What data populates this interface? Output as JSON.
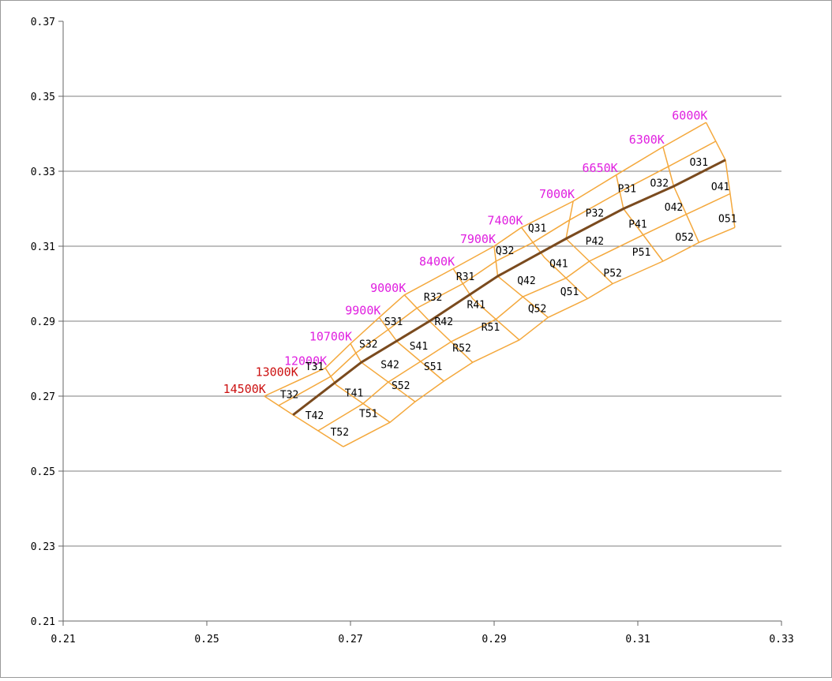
{
  "chart_data": {
    "type": "scatter",
    "title": "",
    "xlabel": "",
    "ylabel": "",
    "xlim": [
      0.21,
      0.33
    ],
    "ylim": [
      0.21,
      0.37
    ],
    "xticks": [
      "0.21",
      "0.25",
      "0.27",
      "0.29",
      "0.31",
      "0.33"
    ],
    "yticks": [
      "0.37",
      "0.35",
      "0.33",
      "0.31",
      "0.29",
      "0.27",
      "0.25",
      "0.23",
      "0.21"
    ],
    "grid": "horizontal",
    "colors": {
      "grid_lines": "#7f7f7f",
      "bin_outline": "#f4a83c",
      "locus": "#7a4a1e",
      "cct_magenta": "#e020e0",
      "cct_red": "#cc1111"
    },
    "planckian_locus": [
      {
        "x": 0.262,
        "y": 0.265
      },
      {
        "x": 0.2715,
        "y": 0.279
      },
      {
        "x": 0.281,
        "y": 0.29
      },
      {
        "x": 0.2905,
        "y": 0.302
      },
      {
        "x": 0.3,
        "y": 0.312
      },
      {
        "x": 0.308,
        "y": 0.32
      },
      {
        "x": 0.315,
        "y": 0.326
      },
      {
        "x": 0.3222,
        "y": 0.333
      }
    ],
    "bin_grid": {
      "upper_edge": [
        {
          "x": 0.258,
          "y": 0.27
        },
        {
          "x": 0.2665,
          "y": 0.2775
        },
        {
          "x": 0.27,
          "y": 0.284
        },
        {
          "x": 0.274,
          "y": 0.291
        },
        {
          "x": 0.2775,
          "y": 0.297
        },
        {
          "x": 0.2843,
          "y": 0.304
        },
        {
          "x": 0.29,
          "y": 0.31
        },
        {
          "x": 0.2938,
          "y": 0.315
        },
        {
          "x": 0.301,
          "y": 0.322
        },
        {
          "x": 0.307,
          "y": 0.329
        },
        {
          "x": 0.3135,
          "y": 0.3365
        },
        {
          "x": 0.3195,
          "y": 0.343
        }
      ],
      "middle_edge": [
        {
          "x": 0.262,
          "y": 0.265
        },
        {
          "x": 0.268,
          "y": 0.273
        },
        {
          "x": 0.2715,
          "y": 0.279
        },
        {
          "x": 0.2765,
          "y": 0.2845
        },
        {
          "x": 0.281,
          "y": 0.29
        },
        {
          "x": 0.287,
          "y": 0.296
        },
        {
          "x": 0.2905,
          "y": 0.302
        },
        {
          "x": 0.297,
          "y": 0.307
        },
        {
          "x": 0.3,
          "y": 0.312
        },
        {
          "x": 0.308,
          "y": 0.32
        },
        {
          "x": 0.315,
          "y": 0.326
        },
        {
          "x": 0.3222,
          "y": 0.333
        }
      ],
      "lower_edge": [
        {
          "x": 0.269,
          "y": 0.2565
        },
        {
          "x": 0.2755,
          "y": 0.263
        },
        {
          "x": 0.279,
          "y": 0.2685
        },
        {
          "x": 0.283,
          "y": 0.274
        },
        {
          "x": 0.287,
          "y": 0.279
        },
        {
          "x": 0.2935,
          "y": 0.285
        },
        {
          "x": 0.2975,
          "y": 0.291
        },
        {
          "x": 0.303,
          "y": 0.296
        },
        {
          "x": 0.3065,
          "y": 0.3
        },
        {
          "x": 0.3135,
          "y": 0.306
        },
        {
          "x": 0.3185,
          "y": 0.311
        },
        {
          "x": 0.3235,
          "y": 0.315
        }
      ]
    },
    "cct_labels": [
      {
        "text": "6000K",
        "x": 0.3195,
        "y": 0.343,
        "color": "magenta"
      },
      {
        "text": "6300K",
        "x": 0.3135,
        "y": 0.3365,
        "color": "magenta"
      },
      {
        "text": "6650K",
        "x": 0.307,
        "y": 0.329,
        "color": "magenta"
      },
      {
        "text": "7000K",
        "x": 0.301,
        "y": 0.322,
        "color": "magenta"
      },
      {
        "text": "7400K",
        "x": 0.2938,
        "y": 0.315,
        "color": "magenta"
      },
      {
        "text": "7900K",
        "x": 0.29,
        "y": 0.31,
        "color": "magenta"
      },
      {
        "text": "8400K",
        "x": 0.2843,
        "y": 0.304,
        "color": "magenta"
      },
      {
        "text": "9000K",
        "x": 0.2775,
        "y": 0.297,
        "color": "magenta"
      },
      {
        "text": "9900K",
        "x": 0.274,
        "y": 0.291,
        "color": "magenta"
      },
      {
        "text": "10700K",
        "x": 0.27,
        "y": 0.284,
        "color": "magenta"
      },
      {
        "text": "12000K",
        "x": 0.2665,
        "y": 0.2775,
        "color": "magenta"
      },
      {
        "text": "13000K",
        "x": 0.2625,
        "y": 0.2745,
        "color": "red"
      },
      {
        "text": "14500K",
        "x": 0.258,
        "y": 0.27,
        "color": "red"
      }
    ],
    "bins": [
      {
        "label": "O31",
        "x": 0.3185,
        "y": 0.3325
      },
      {
        "label": "O32",
        "x": 0.313,
        "y": 0.327
      },
      {
        "label": "O41",
        "x": 0.3215,
        "y": 0.326
      },
      {
        "label": "O42",
        "x": 0.315,
        "y": 0.3205
      },
      {
        "label": "O51",
        "x": 0.3225,
        "y": 0.3175
      },
      {
        "label": "O52",
        "x": 0.3165,
        "y": 0.3125
      },
      {
        "label": "P31",
        "x": 0.3085,
        "y": 0.3255
      },
      {
        "label": "P32",
        "x": 0.304,
        "y": 0.319
      },
      {
        "label": "P41",
        "x": 0.31,
        "y": 0.316
      },
      {
        "label": "P42",
        "x": 0.304,
        "y": 0.3115
      },
      {
        "label": "P51",
        "x": 0.3105,
        "y": 0.3085
      },
      {
        "label": "P52",
        "x": 0.3065,
        "y": 0.303
      },
      {
        "label": "Q31",
        "x": 0.296,
        "y": 0.315
      },
      {
        "label": "Q32",
        "x": 0.2915,
        "y": 0.309
      },
      {
        "label": "Q41",
        "x": 0.299,
        "y": 0.3055
      },
      {
        "label": "Q42",
        "x": 0.2945,
        "y": 0.301
      },
      {
        "label": "Q51",
        "x": 0.3005,
        "y": 0.298
      },
      {
        "label": "Q52",
        "x": 0.296,
        "y": 0.2935
      },
      {
        "label": "R31",
        "x": 0.286,
        "y": 0.302
      },
      {
        "label": "R32",
        "x": 0.2815,
        "y": 0.2965
      },
      {
        "label": "R41",
        "x": 0.2875,
        "y": 0.2945
      },
      {
        "label": "R42",
        "x": 0.283,
        "y": 0.29
      },
      {
        "label": "R51",
        "x": 0.2895,
        "y": 0.2885
      },
      {
        "label": "R52",
        "x": 0.2855,
        "y": 0.283
      },
      {
        "label": "S31",
        "x": 0.276,
        "y": 0.29
      },
      {
        "label": "S32",
        "x": 0.2725,
        "y": 0.284
      },
      {
        "label": "S41",
        "x": 0.2795,
        "y": 0.2835
      },
      {
        "label": "S42",
        "x": 0.2755,
        "y": 0.2785
      },
      {
        "label": "S51",
        "x": 0.2815,
        "y": 0.278
      },
      {
        "label": "S52",
        "x": 0.277,
        "y": 0.273
      },
      {
        "label": "T31",
        "x": 0.265,
        "y": 0.278
      },
      {
        "label": "T32",
        "x": 0.2615,
        "y": 0.2705
      },
      {
        "label": "T41",
        "x": 0.2705,
        "y": 0.271
      },
      {
        "label": "T42",
        "x": 0.265,
        "y": 0.265
      },
      {
        "label": "T51",
        "x": 0.2725,
        "y": 0.2655
      },
      {
        "label": "T52",
        "x": 0.2685,
        "y": 0.2605
      }
    ]
  }
}
